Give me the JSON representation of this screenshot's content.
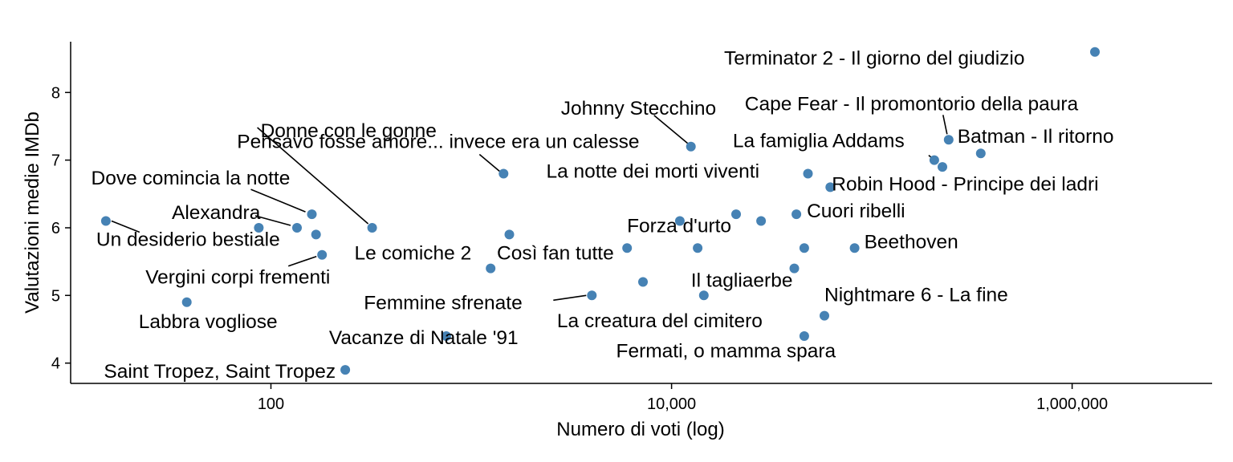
{
  "chart_data": {
    "type": "scatter",
    "title": "",
    "xlabel": "Numero di voti (log)",
    "ylabel": "Valutazioni medie IMDb",
    "x_scale": "log10",
    "xlim": [
      10,
      5000000
    ],
    "ylim": [
      3.7,
      8.75
    ],
    "x_ticks": [
      100,
      10000,
      1000000
    ],
    "x_tick_labels": [
      "100",
      "10,000",
      "1,000,000"
    ],
    "y_ticks": [
      4,
      5,
      6,
      7,
      8
    ],
    "y_tick_labels": [
      "4",
      "5",
      "6",
      "7",
      "8"
    ],
    "grid": false,
    "legend": "none",
    "point_color": "#4682b4",
    "points": [
      {
        "label": "Un desiderio bestiale",
        "x": 15,
        "y": 6.1
      },
      {
        "label": "Labbra vogliose",
        "x": 38,
        "y": 4.9
      },
      {
        "label": "",
        "x": 87,
        "y": 6.0
      },
      {
        "label": "Alexandra",
        "x": 135,
        "y": 6.0
      },
      {
        "label": "Dove comincia la notte",
        "x": 160,
        "y": 6.2
      },
      {
        "label": "",
        "x": 168,
        "y": 5.9
      },
      {
        "label": "Vergini corpi frementi",
        "x": 180,
        "y": 5.6
      },
      {
        "label": "Saint Tropez, Saint Tropez",
        "x": 235,
        "y": 3.9
      },
      {
        "label": "Donne con le gonne",
        "x": 320,
        "y": 6.0
      },
      {
        "label": "Vacanze di Natale '91",
        "x": 750,
        "y": 4.4
      },
      {
        "label": "",
        "x": 1250,
        "y": 5.4
      },
      {
        "label": "Pensavo fosse amore... invece era un calesse",
        "x": 1450,
        "y": 6.8
      },
      {
        "label": "Le comiche 2",
        "x": 1550,
        "y": 5.9
      },
      {
        "label": "Femmine sfrenate",
        "x": 4000,
        "y": 5.0
      },
      {
        "label": "",
        "x": 6000,
        "y": 5.7
      },
      {
        "label": "Così fan tutte",
        "x": 7200,
        "y": 5.2
      },
      {
        "label": "",
        "x": 11000,
        "y": 6.1
      },
      {
        "label": "Johnny Stecchino",
        "x": 12500,
        "y": 7.2
      },
      {
        "label": "",
        "x": 13500,
        "y": 5.7
      },
      {
        "label": "Il tagliaerbe",
        "x": 14500,
        "y": 5.0
      },
      {
        "label": "",
        "x": 21000,
        "y": 6.2
      },
      {
        "label": "Forza d'urto",
        "x": 28000,
        "y": 6.1
      },
      {
        "label": "Fermati, o mamma spara",
        "x": 41000,
        "y": 5.4
      },
      {
        "label": "Cuori ribelli",
        "x": 42000,
        "y": 6.2
      },
      {
        "label": "La creatura del cimitero",
        "x": 46000,
        "y": 4.4
      },
      {
        "label": "",
        "x": 46000,
        "y": 5.7
      },
      {
        "label": "La notte dei morti viventi",
        "x": 48000,
        "y": 6.8
      },
      {
        "label": "Nightmare 6 - La fine",
        "x": 58000,
        "y": 4.7
      },
      {
        "label": "Robin Hood - Principe dei ladri",
        "x": 62000,
        "y": 6.6
      },
      {
        "label": "Beethoven",
        "x": 82000,
        "y": 5.7
      },
      {
        "label": "La famiglia Addams",
        "x": 205000,
        "y": 7.0
      },
      {
        "label": "",
        "x": 225000,
        "y": 6.9
      },
      {
        "label": "Cape Fear - Il promontorio della paura",
        "x": 242000,
        "y": 7.3
      },
      {
        "label": "Batman - Il ritorno",
        "x": 350000,
        "y": 7.1
      },
      {
        "label": "Terminator 2 - Il giorno del giudizio",
        "x": 1300000,
        "y": 8.6
      }
    ]
  }
}
